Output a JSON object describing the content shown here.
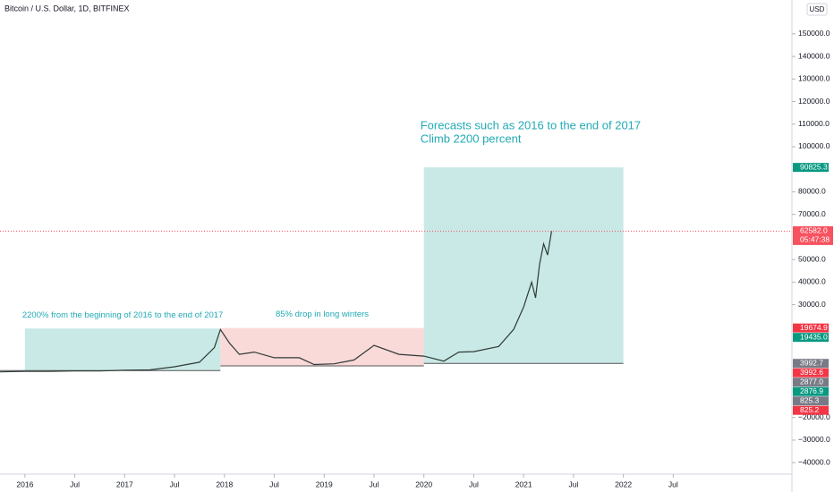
{
  "chart_data": {
    "type": "line",
    "title": "Bitcoin / U.S. Dollar, 1D, BITFINEX",
    "currency": "USD",
    "color": "#2f3a36",
    "x": [
      2015.75,
      2016,
      2016.25,
      2016.5,
      2016.75,
      2017,
      2017.25,
      2017.5,
      2017.75,
      2017.9,
      2017.96,
      2018.05,
      2018.15,
      2018.3,
      2018.5,
      2018.75,
      2018.9,
      2019.1,
      2019.3,
      2019.5,
      2019.75,
      2020,
      2020.2,
      2020.35,
      2020.5,
      2020.75,
      2020.9,
      2021,
      2021.08,
      2021.12,
      2021.16,
      2021.2,
      2021.24,
      2021.28
    ],
    "values": [
      250,
      430,
      420,
      650,
      610,
      1000,
      1100,
      2500,
      4500,
      11000,
      19000,
      13000,
      8000,
      9000,
      6500,
      6500,
      3500,
      3800,
      5500,
      12000,
      8000,
      7200,
      5000,
      9000,
      9200,
      11500,
      19000,
      29000,
      40000,
      33000,
      48000,
      57000,
      52000,
      62582
    ],
    "xlim": [
      2015.75,
      2023.69
    ],
    "ylim": [
      -53000,
      165000
    ],
    "xticks": [
      {
        "value": 2016,
        "label": "2016"
      },
      {
        "value": 2016.5,
        "label": "Jul"
      },
      {
        "value": 2017,
        "label": "2017"
      },
      {
        "value": 2017.5,
        "label": "Jul"
      },
      {
        "value": 2018,
        "label": "2018"
      },
      {
        "value": 2018.5,
        "label": "Jul"
      },
      {
        "value": 2019,
        "label": "2019"
      },
      {
        "value": 2019.5,
        "label": "Jul"
      },
      {
        "value": 2020,
        "label": "2020"
      },
      {
        "value": 2020.5,
        "label": "Jul"
      },
      {
        "value": 2021,
        "label": "2021"
      },
      {
        "value": 2021.5,
        "label": "Jul"
      },
      {
        "value": 2022,
        "label": "2022"
      },
      {
        "value": 2022.5,
        "label": "Jul"
      }
    ],
    "yticks": [
      {
        "value": 150000,
        "label": "150000.0"
      },
      {
        "value": 140000,
        "label": "140000.0"
      },
      {
        "value": 130000,
        "label": "130000.0"
      },
      {
        "value": 120000,
        "label": "120000.0"
      },
      {
        "value": 110000,
        "label": "110000.0"
      },
      {
        "value": 100000,
        "label": "100000.0"
      },
      {
        "value": 80000,
        "label": "80000.0"
      },
      {
        "value": 70000,
        "label": "70000.0"
      },
      {
        "value": 50000,
        "label": "50000.0"
      },
      {
        "value": 40000,
        "label": "40000.0"
      },
      {
        "value": 30000,
        "label": "30000.0"
      },
      {
        "value": -20000,
        "label": "−20000.0"
      },
      {
        "value": -30000,
        "label": "−30000.0"
      },
      {
        "value": -40000,
        "label": "−40000.0"
      }
    ],
    "boxes": [
      {
        "text": "2200% from the beginning of 2016 to the end of 2017",
        "x": [
          2016,
          2017.96
        ],
        "y": [
          825.3,
          19435.0
        ],
        "color": "#b2dfdb"
      },
      {
        "text": "85% drop in long winters",
        "x": [
          2017.96,
          2020
        ],
        "y": [
          2877.0,
          19674.9
        ],
        "color": "#f8c9c9"
      },
      {
        "text": [
          "Forecasts such as 2016 to the end of 2017",
          "Climb 2200 percent"
        ],
        "x": [
          2020,
          2022
        ],
        "y": [
          3992.7,
          90825.3
        ],
        "color": "#b2dfdb"
      }
    ],
    "last_price": {
      "value": 62582.0,
      "label": "62582.0",
      "countdown": "05:47:38",
      "color": "#f7525f"
    },
    "price_labels": [
      {
        "value": 90825.3,
        "label": "90825.3",
        "color": "#089981"
      },
      {
        "value": 19674.9,
        "label": "19674.9",
        "color": "#f23645"
      },
      {
        "value": 19435.0,
        "label": "19435.0",
        "color": "#089981"
      },
      {
        "value": 3992.7,
        "label": "3992.7",
        "color": "#787b86"
      },
      {
        "value": 3992.6,
        "label": "3992.6",
        "color": "#f23645"
      },
      {
        "value": 2877.0,
        "label": "2877.0",
        "color": "#787b86"
      },
      {
        "value": 2876.9,
        "label": "2876.9",
        "color": "#089981"
      },
      {
        "value": 825.3,
        "label": "825.3",
        "color": "#787b86"
      },
      {
        "value": 825.2,
        "label": "825.2",
        "color": "#f23645"
      }
    ]
  }
}
